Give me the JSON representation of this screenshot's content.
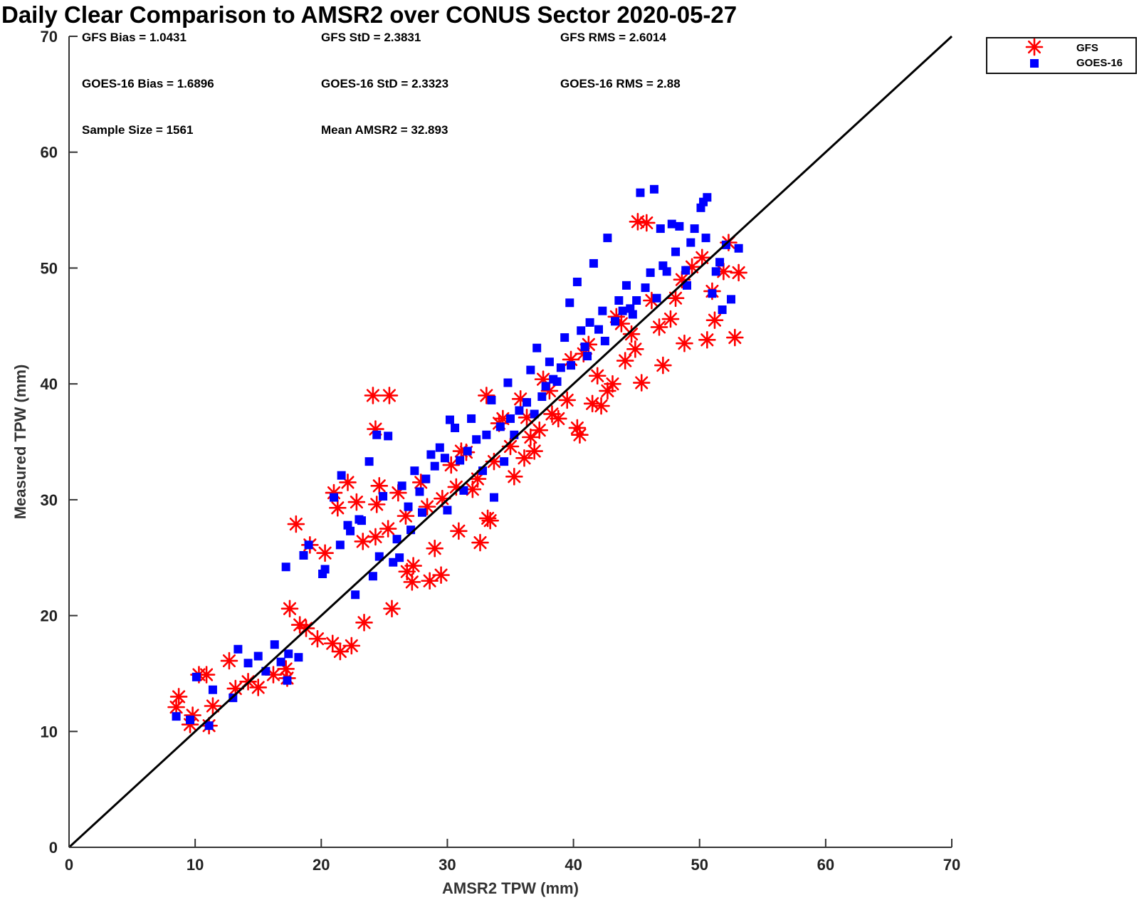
{
  "chart_data": {
    "type": "scatter",
    "title": "Daily Clear Comparison to AMSR2 over CONUS Sector 2020-05-27",
    "xlabel": "AMSR2 TPW (mm)",
    "ylabel": "Measured TPW (mm)",
    "xlim": [
      0,
      70
    ],
    "ylim": [
      0,
      70
    ],
    "xticks": [
      0,
      10,
      20,
      30,
      40,
      50,
      60,
      70
    ],
    "yticks": [
      0,
      10,
      20,
      30,
      40,
      50,
      60,
      70
    ],
    "grid": false,
    "legend_position": "outside top-right",
    "reference_line": {
      "x": [
        0,
        70
      ],
      "y": [
        0,
        70
      ],
      "color": "#000000"
    },
    "stats": [
      [
        "GFS Bias = 1.0431",
        "GFS StD = 2.3831",
        "GFS RMS = 2.6014"
      ],
      [
        "GOES-16 Bias = 1.6896",
        "GOES-16 StD = 2.3323",
        "GOES-16 RMS = 2.88"
      ],
      [
        "Sample Size = 1561",
        "Mean AMSR2 = 32.893"
      ]
    ],
    "series": [
      {
        "name": "GFS",
        "marker": "asterisk",
        "color": "#ff0000",
        "x": [
          8.5,
          8.7,
          9.6,
          9.8,
          10.3,
          10.9,
          11.1,
          11.4,
          12.7,
          13.2,
          14.2,
          15.0,
          16.2,
          17.2,
          17.3,
          17.5,
          18.0,
          18.3,
          18.8,
          19.1,
          19.7,
          20.3,
          20.9,
          21.0,
          21.3,
          21.5,
          22.1,
          22.4,
          23.4,
          24.1,
          24.3,
          24.6,
          25.4,
          25.6,
          26.8,
          27.2,
          27.3,
          28.6,
          29.0,
          29.5,
          30.9,
          32.0,
          32.6,
          33.1,
          33.2,
          33.4,
          35.3,
          36.1,
          36.9,
          38.3,
          40.3,
          40.5,
          41.5,
          42.2,
          43.1,
          44.6,
          45.1,
          45.4,
          45.8,
          47.1,
          48.8,
          50.6,
          51.0,
          51.2,
          51.9,
          52.3,
          52.8,
          53.1,
          24.3,
          25.3,
          24.4,
          30.3,
          31.5,
          34.1,
          35.8,
          37.6,
          39.8,
          41.2,
          43.4,
          46.2,
          48.6,
          49.4,
          50.2,
          22.8,
          26.1,
          28.4,
          30.7,
          33.7,
          36.6,
          38.8,
          42.7,
          44.1,
          47.7,
          23.3,
          26.7,
          29.6,
          32.4,
          35.0,
          37.3,
          39.5,
          41.9,
          44.9,
          46.8,
          27.9,
          31.1,
          34.4,
          36.3,
          38.1,
          40.8,
          43.8,
          48.1
        ],
        "y": [
          12.1,
          13.0,
          10.6,
          11.4,
          14.9,
          14.9,
          10.5,
          12.2,
          16.1,
          13.7,
          14.3,
          13.8,
          14.9,
          15.4,
          14.6,
          20.6,
          27.9,
          19.2,
          18.9,
          26.1,
          18.0,
          25.4,
          17.6,
          30.6,
          29.3,
          16.9,
          31.5,
          17.4,
          19.4,
          39.0,
          36.1,
          31.2,
          39.0,
          20.6,
          23.8,
          22.9,
          24.3,
          23.0,
          25.8,
          23.5,
          27.3,
          30.9,
          26.3,
          39.0,
          28.4,
          28.2,
          32.0,
          33.6,
          34.2,
          37.4,
          36.2,
          35.6,
          38.3,
          38.1,
          40.0,
          44.3,
          54.0,
          40.1,
          53.9,
          41.6,
          43.5,
          43.8,
          48.0,
          45.5,
          49.7,
          52.2,
          44.0,
          49.6,
          26.8,
          27.5,
          29.6,
          33.0,
          34.1,
          36.6,
          38.7,
          40.4,
          42.1,
          43.4,
          45.8,
          47.2,
          49.0,
          50.1,
          50.9,
          29.8,
          30.6,
          29.4,
          31.1,
          33.3,
          35.4,
          37.0,
          39.4,
          42.0,
          45.6,
          26.4,
          28.6,
          30.1,
          31.8,
          34.6,
          36.0,
          38.6,
          40.7,
          43.0,
          44.9,
          31.5,
          34.2,
          37.0,
          37.1,
          39.4,
          42.6,
          45.2,
          47.4
        ]
      },
      {
        "name": "GOES-16",
        "marker": "square",
        "color": "#0000ff",
        "x": [
          8.5,
          9.6,
          10.1,
          11.1,
          11.4,
          13.0,
          13.4,
          14.2,
          15.0,
          16.3,
          17.3,
          17.4,
          17.2,
          18.6,
          19.0,
          20.1,
          21.0,
          21.6,
          22.1,
          23.0,
          23.8,
          24.4,
          24.6,
          25.3,
          26.0,
          26.9,
          27.8,
          28.3,
          29.0,
          29.8,
          30.2,
          31.0,
          31.6,
          32.3,
          33.1,
          33.7,
          34.2,
          35.0,
          35.7,
          36.3,
          37.1,
          37.8,
          38.4,
          39.0,
          39.7,
          40.3,
          40.9,
          41.6,
          42.0,
          42.7,
          43.3,
          43.9,
          44.5,
          45.0,
          45.3,
          45.7,
          46.4,
          46.9,
          47.4,
          47.8,
          48.4,
          49.0,
          49.6,
          50.1,
          50.3,
          50.6,
          51.0,
          51.3,
          51.8,
          52.1,
          52.5,
          53.1,
          20.3,
          21.5,
          22.3,
          23.2,
          24.9,
          26.4,
          27.4,
          28.7,
          29.4,
          30.6,
          31.9,
          33.5,
          34.8,
          36.6,
          38.1,
          39.3,
          40.6,
          41.3,
          42.3,
          43.6,
          44.2,
          46.1,
          47.1,
          48.1,
          49.3,
          50.5,
          22.7,
          24.1,
          25.7,
          26.2,
          27.1,
          28.0,
          30.0,
          31.3,
          32.8,
          34.5,
          35.3,
          36.9,
          37.5,
          38.7,
          39.8,
          41.1,
          42.5,
          44.7,
          46.6,
          48.9,
          51.6,
          15.6,
          16.8,
          18.2
        ],
        "y": [
          11.3,
          11.0,
          14.7,
          10.5,
          13.6,
          12.9,
          17.1,
          15.9,
          16.5,
          17.5,
          14.4,
          16.7,
          24.2,
          25.2,
          26.1,
          23.6,
          30.2,
          32.1,
          27.8,
          28.3,
          33.3,
          35.6,
          25.1,
          35.5,
          26.6,
          29.4,
          30.7,
          31.8,
          32.9,
          33.6,
          36.9,
          33.4,
          34.2,
          35.2,
          35.6,
          30.2,
          36.3,
          37.0,
          37.7,
          38.4,
          43.1,
          39.8,
          40.4,
          41.4,
          47.0,
          48.8,
          43.2,
          50.4,
          44.7,
          52.6,
          45.4,
          46.3,
          46.5,
          47.2,
          56.5,
          48.3,
          56.8,
          53.4,
          49.7,
          53.8,
          53.6,
          48.5,
          53.4,
          55.2,
          55.7,
          56.1,
          47.8,
          49.7,
          46.4,
          52.0,
          47.3,
          51.7,
          24.0,
          26.1,
          27.3,
          28.2,
          30.3,
          31.2,
          32.5,
          33.9,
          34.5,
          36.2,
          37.0,
          38.6,
          40.1,
          41.2,
          41.9,
          44.0,
          44.6,
          45.3,
          46.3,
          47.2,
          48.5,
          49.6,
          50.2,
          51.4,
          52.2,
          52.6,
          21.8,
          23.4,
          24.6,
          25.0,
          27.4,
          28.9,
          29.1,
          30.8,
          32.5,
          33.3,
          35.6,
          37.4,
          38.9,
          40.2,
          41.6,
          42.4,
          43.7,
          46.0,
          47.4,
          49.8,
          50.5,
          15.2,
          16.0,
          16.4
        ]
      }
    ]
  }
}
